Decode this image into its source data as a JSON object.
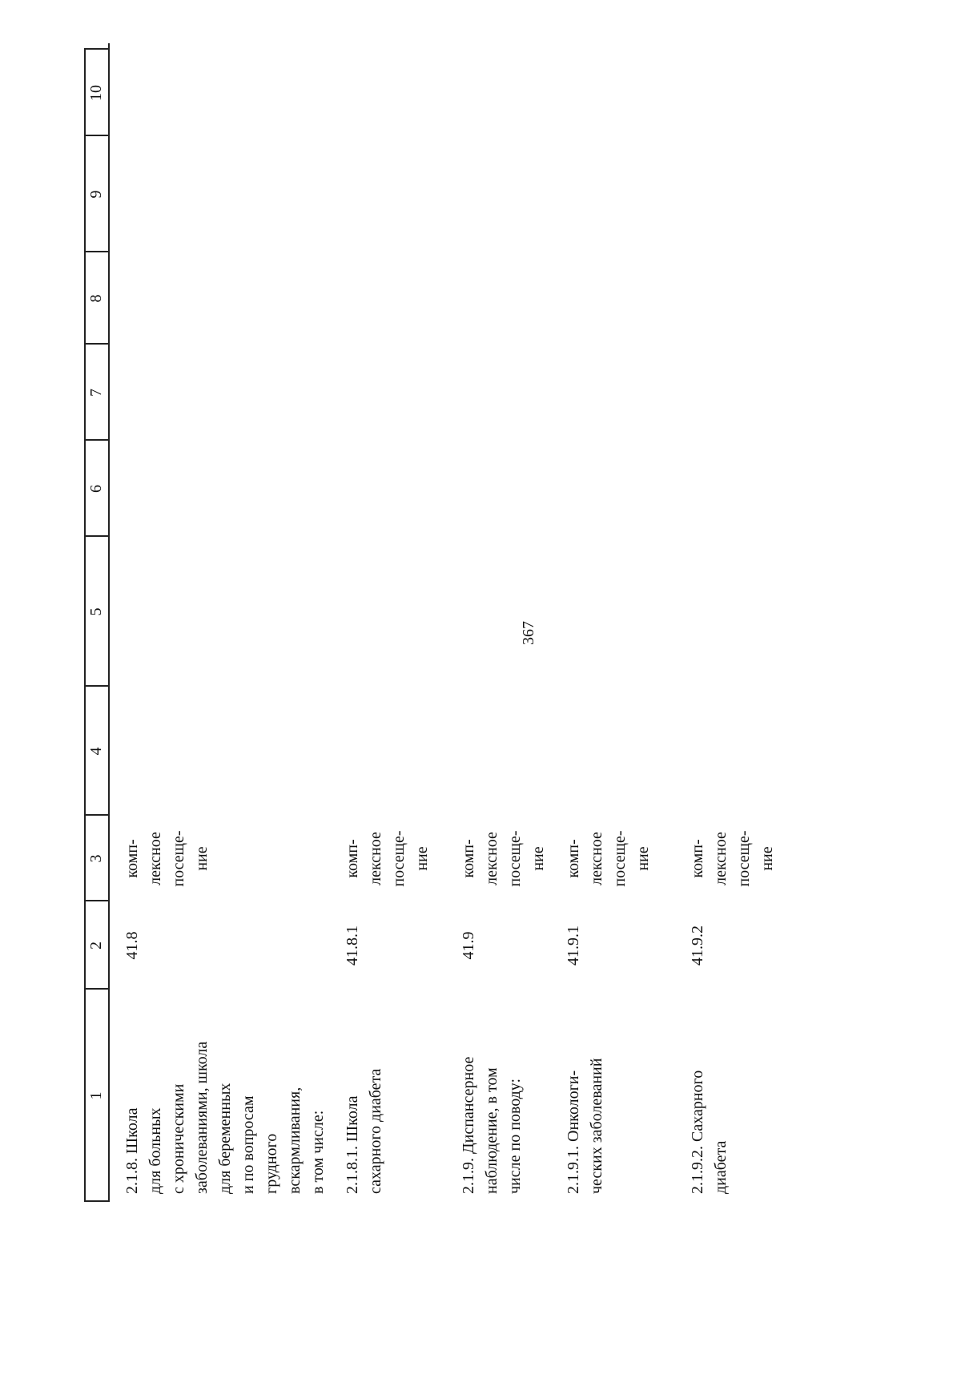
{
  "header": {
    "page_number": "367"
  },
  "table": {
    "columns": [
      "1",
      "2",
      "3",
      "4",
      "5",
      "6",
      "7",
      "8",
      "9",
      "10"
    ],
    "rows": [
      {
        "name": "2.1.8. Школа\nдля больных\nс хроническими\nзаболеваниями, школа\nдля беременных\nи по вопросам\nгрудного\nвскармливания,\nв том числе:",
        "code": "41.8",
        "unit": "комп-\nлексное\nпосеще-\nние"
      },
      {
        "name": "2.1.8.1. Школа\nсахарного диабета",
        "code": "41.8.1",
        "unit": "комп-\nлексное\nпосеще-\nние"
      },
      {
        "name": "2.1.9. Диспансерное\nнаблюдение, в том\nчисле по поводу:",
        "code": "41.9",
        "unit": "комп-\nлексное\nпосеще-\nние"
      },
      {
        "name": "2.1.9.1. Онкологи-\nческих заболеваний",
        "code": "41.9.1",
        "unit": "комп-\nлексное\nпосеще-\nние"
      },
      {
        "name": "2.1.9.2. Сахарного\nдиабета",
        "code": "41.9.2",
        "unit": "комп-\nлексное\nпосеще-\nние"
      }
    ]
  }
}
